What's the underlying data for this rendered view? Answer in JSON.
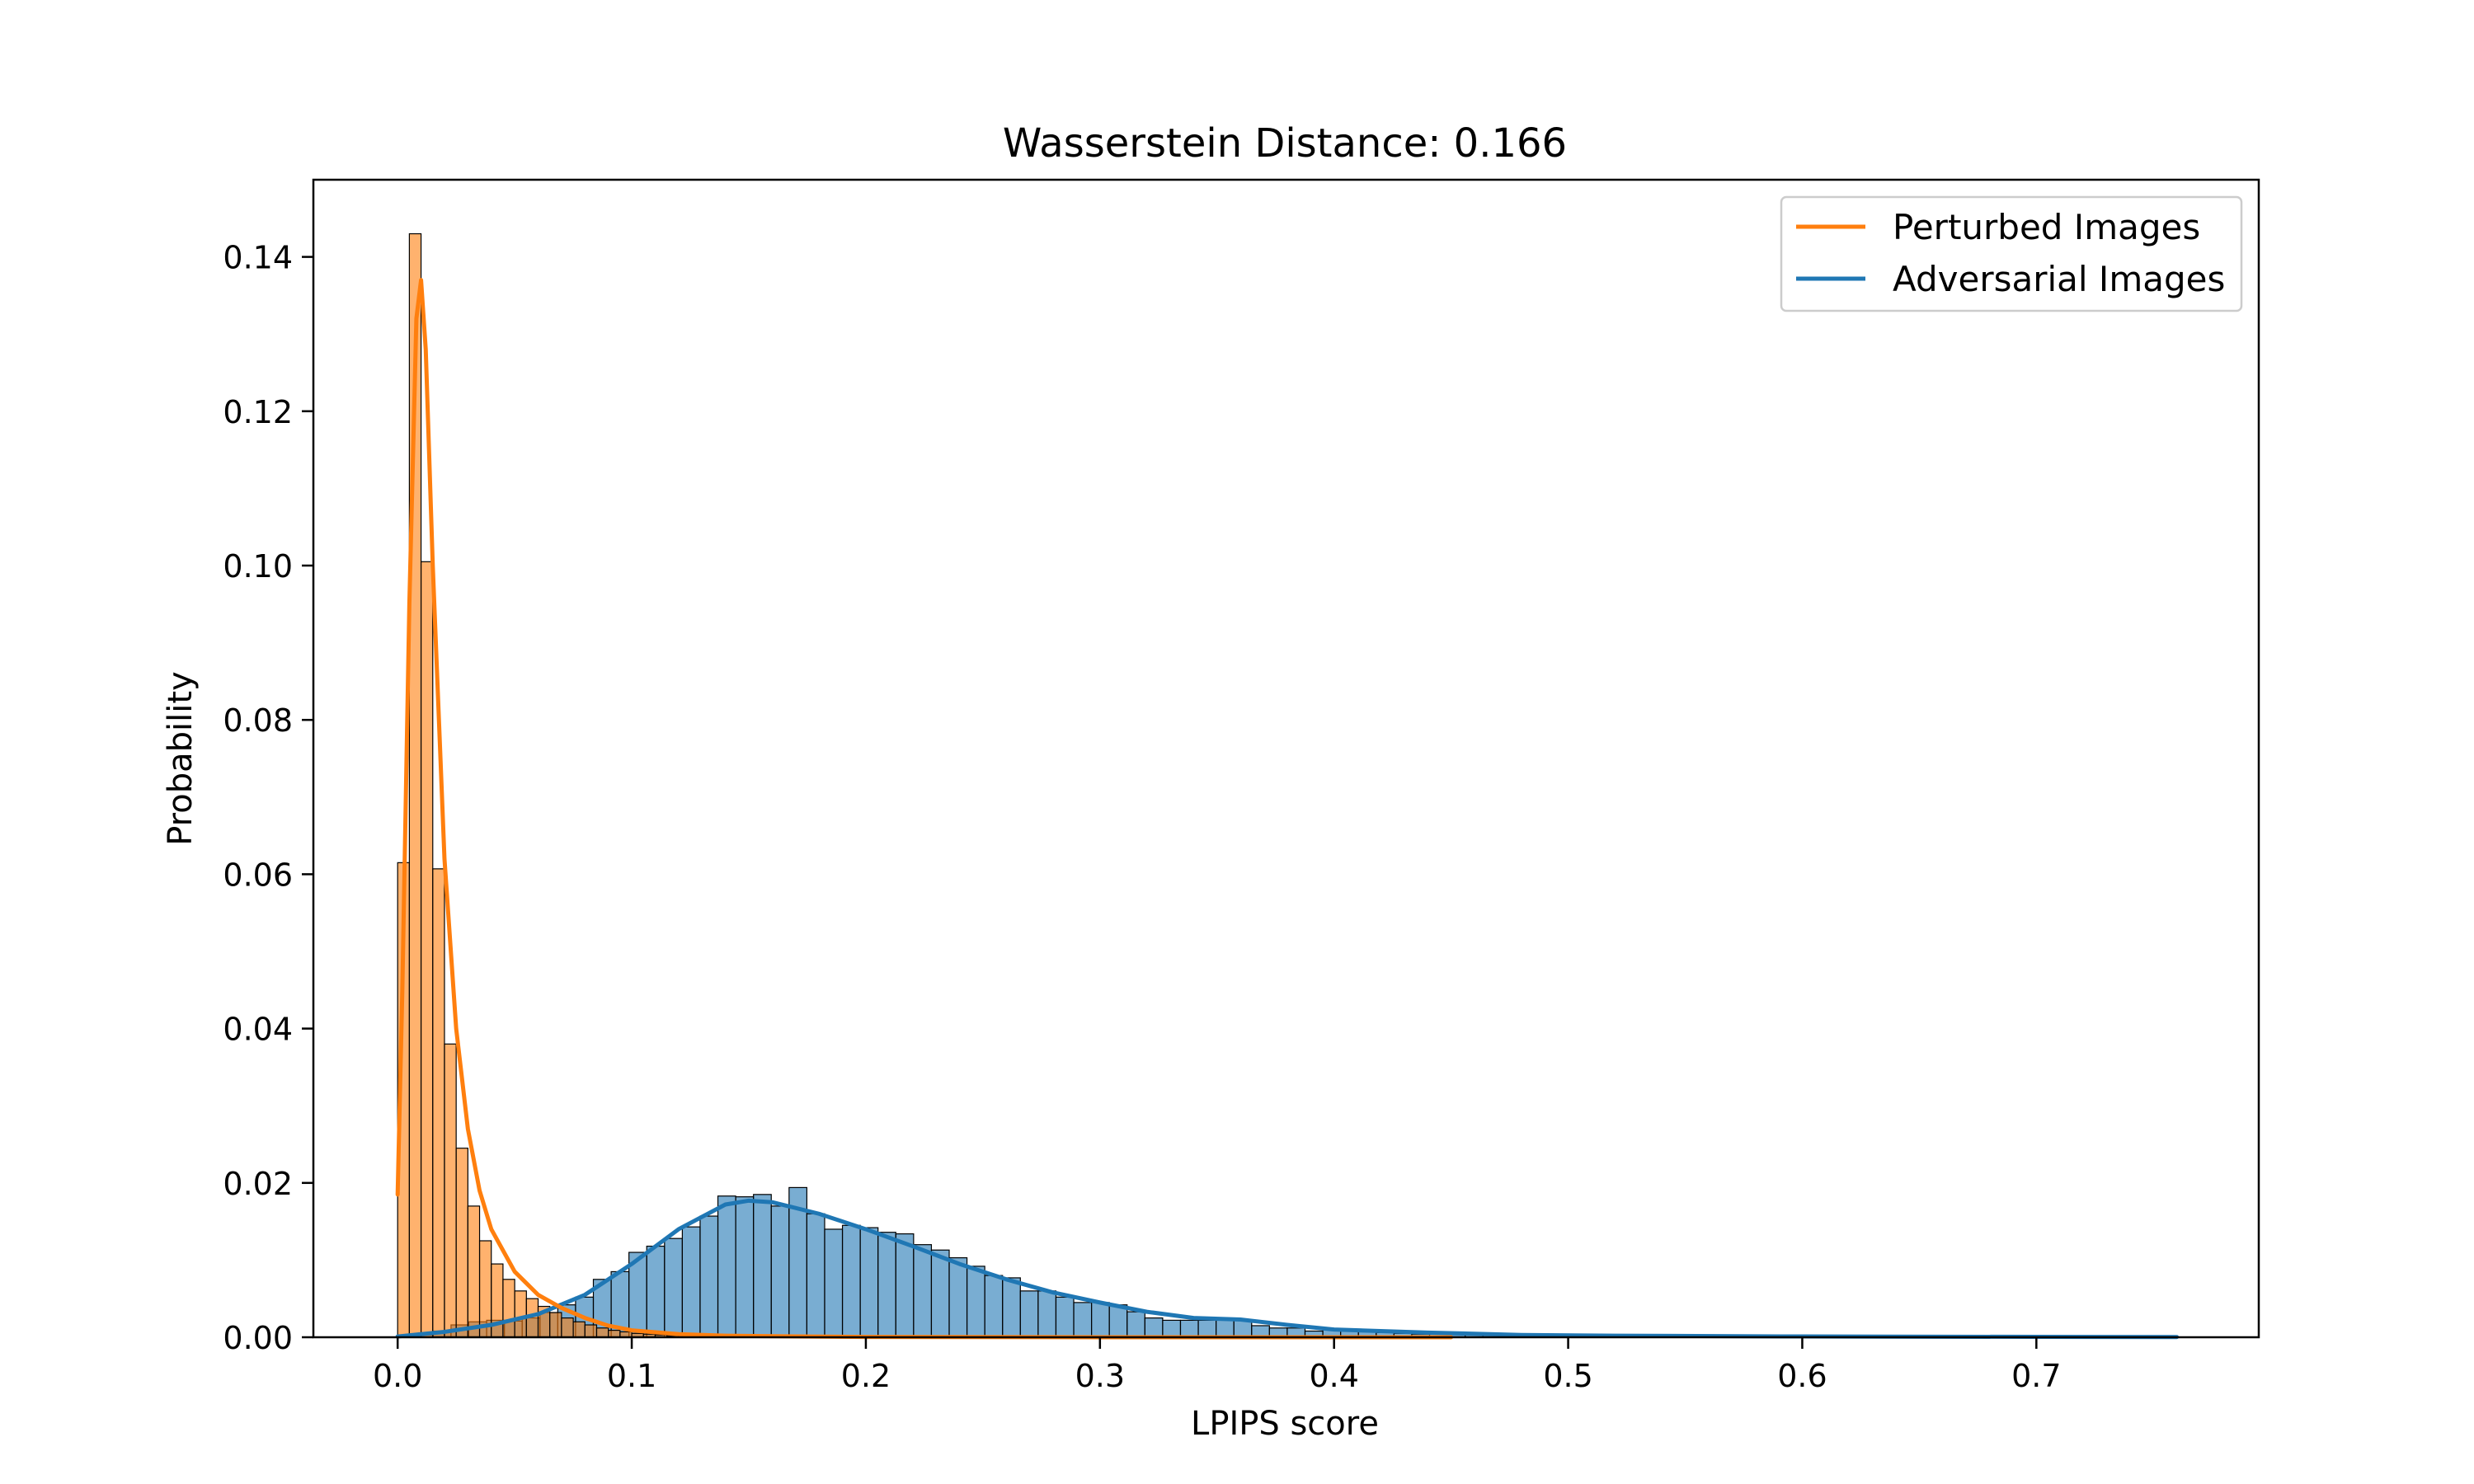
{
  "chart_data": {
    "type": "histogram",
    "title": "Wasserstein Distance: 0.166",
    "xlabel": "LPIPS score",
    "ylabel": "Probability",
    "xlim": [
      -0.036,
      0.795
    ],
    "ylim": [
      0.0,
      0.15
    ],
    "xticks": [
      0.0,
      0.1,
      0.2,
      0.3,
      0.4,
      0.5,
      0.6,
      0.7
    ],
    "xtick_labels": [
      "0.0",
      "0.1",
      "0.2",
      "0.3",
      "0.4",
      "0.5",
      "0.6",
      "0.7"
    ],
    "yticks": [
      0.0,
      0.02,
      0.04,
      0.06,
      0.08,
      0.1,
      0.12,
      0.14
    ],
    "ytick_labels": [
      "0.00",
      "0.02",
      "0.04",
      "0.06",
      "0.08",
      "0.10",
      "0.12",
      "0.14"
    ],
    "grid": false,
    "legend_position": "top-right",
    "series": [
      {
        "name": "Perturbed Images",
        "color": "#ff7f0e",
        "bin_width": 0.005,
        "bins": [
          [
            0.0,
            0.0615
          ],
          [
            0.005,
            0.143
          ],
          [
            0.01,
            0.1005
          ],
          [
            0.015,
            0.0607
          ],
          [
            0.02,
            0.038
          ],
          [
            0.025,
            0.0245
          ],
          [
            0.03,
            0.017
          ],
          [
            0.035,
            0.0125
          ],
          [
            0.04,
            0.0095
          ],
          [
            0.045,
            0.0075
          ],
          [
            0.05,
            0.006
          ],
          [
            0.055,
            0.005
          ],
          [
            0.06,
            0.004
          ],
          [
            0.065,
            0.0032
          ],
          [
            0.07,
            0.0025
          ],
          [
            0.075,
            0.002
          ],
          [
            0.08,
            0.0016
          ],
          [
            0.085,
            0.0012
          ],
          [
            0.09,
            0.0009
          ],
          [
            0.095,
            0.0007
          ],
          [
            0.1,
            0.0005
          ],
          [
            0.105,
            0.0004
          ],
          [
            0.11,
            0.0003
          ],
          [
            0.115,
            0.0002
          ],
          [
            0.12,
            0.0002
          ],
          [
            0.125,
            0.0001
          ]
        ],
        "kde": [
          [
            0.0,
            0.0185
          ],
          [
            0.002,
            0.045
          ],
          [
            0.005,
            0.095
          ],
          [
            0.008,
            0.132
          ],
          [
            0.01,
            0.137
          ],
          [
            0.012,
            0.128
          ],
          [
            0.015,
            0.1
          ],
          [
            0.02,
            0.062
          ],
          [
            0.025,
            0.04
          ],
          [
            0.03,
            0.027
          ],
          [
            0.035,
            0.019
          ],
          [
            0.04,
            0.014
          ],
          [
            0.05,
            0.0085
          ],
          [
            0.06,
            0.0055
          ],
          [
            0.07,
            0.0038
          ],
          [
            0.08,
            0.0025
          ],
          [
            0.09,
            0.0015
          ],
          [
            0.1,
            0.0009
          ],
          [
            0.12,
            0.0004
          ],
          [
            0.14,
            0.0002
          ],
          [
            0.17,
            0.0001
          ],
          [
            0.2,
            4e-05
          ],
          [
            0.3,
            0.0
          ],
          [
            0.45,
            0.0
          ]
        ]
      },
      {
        "name": "Adversarial Images",
        "color": "#1f77b4",
        "bin_width": 0.0076,
        "bins": [
          [
            0.0,
            0.0
          ],
          [
            0.0076,
            0.0003
          ],
          [
            0.0152,
            0.0008
          ],
          [
            0.0228,
            0.0016
          ],
          [
            0.0304,
            0.002
          ],
          [
            0.038,
            0.0022
          ],
          [
            0.0456,
            0.0021
          ],
          [
            0.0532,
            0.0025
          ],
          [
            0.0608,
            0.0032
          ],
          [
            0.0684,
            0.0042
          ],
          [
            0.076,
            0.0052
          ],
          [
            0.0836,
            0.0075
          ],
          [
            0.0912,
            0.0085
          ],
          [
            0.0988,
            0.011
          ],
          [
            0.1064,
            0.0118
          ],
          [
            0.114,
            0.0128
          ],
          [
            0.1216,
            0.0143
          ],
          [
            0.1292,
            0.0157
          ],
          [
            0.1368,
            0.0183
          ],
          [
            0.1444,
            0.0182
          ],
          [
            0.152,
            0.0185
          ],
          [
            0.1596,
            0.017
          ],
          [
            0.1672,
            0.0194
          ],
          [
            0.1748,
            0.016
          ],
          [
            0.1824,
            0.014
          ],
          [
            0.19,
            0.0145
          ],
          [
            0.1976,
            0.0142
          ],
          [
            0.2052,
            0.0136
          ],
          [
            0.2128,
            0.0134
          ],
          [
            0.2204,
            0.012
          ],
          [
            0.228,
            0.0113
          ],
          [
            0.2356,
            0.0103
          ],
          [
            0.2432,
            0.0092
          ],
          [
            0.2508,
            0.008
          ],
          [
            0.2584,
            0.0077
          ],
          [
            0.266,
            0.006
          ],
          [
            0.2736,
            0.006
          ],
          [
            0.2812,
            0.0052
          ],
          [
            0.2888,
            0.0045
          ],
          [
            0.2964,
            0.0045
          ],
          [
            0.304,
            0.0042
          ],
          [
            0.3116,
            0.0033
          ],
          [
            0.3192,
            0.0025
          ],
          [
            0.3268,
            0.0022
          ],
          [
            0.3344,
            0.0022
          ],
          [
            0.342,
            0.0022
          ],
          [
            0.3496,
            0.0022
          ],
          [
            0.3572,
            0.0022
          ],
          [
            0.3648,
            0.0015
          ],
          [
            0.3724,
            0.0012
          ],
          [
            0.38,
            0.0012
          ],
          [
            0.3876,
            0.0008
          ],
          [
            0.3952,
            0.001
          ],
          [
            0.4028,
            0.0008
          ],
          [
            0.4104,
            0.0007
          ],
          [
            0.418,
            0.0006
          ],
          [
            0.4256,
            0.0005
          ],
          [
            0.4332,
            0.0004
          ],
          [
            0.4408,
            0.0004
          ],
          [
            0.4484,
            0.0004
          ],
          [
            0.456,
            0.0004
          ],
          [
            0.4636,
            0.0003
          ],
          [
            0.4712,
            0.0003
          ],
          [
            0.4788,
            0.0002
          ],
          [
            0.4864,
            0.0002
          ],
          [
            0.494,
            0.0002
          ],
          [
            0.5016,
            0.0002
          ],
          [
            0.5092,
            0.0001
          ],
          [
            0.5168,
            0.0001
          ],
          [
            0.5244,
            0.0001
          ],
          [
            0.532,
            0.0001
          ],
          [
            0.5396,
            0.0001
          ],
          [
            0.5472,
            0.0001
          ],
          [
            0.5548,
            0.0001
          ],
          [
            0.5624,
            0.0001
          ],
          [
            0.57,
            5e-05
          ],
          [
            0.5776,
            5e-05
          ],
          [
            0.5852,
            5e-05
          ],
          [
            0.5928,
            5e-05
          ],
          [
            0.6004,
            5e-05
          ],
          [
            0.608,
            5e-05
          ],
          [
            0.6156,
            5e-05
          ],
          [
            0.6232,
            5e-05
          ],
          [
            0.6308,
            5e-05
          ],
          [
            0.6384,
            5e-05
          ],
          [
            0.646,
            5e-05
          ],
          [
            0.6536,
            5e-05
          ],
          [
            0.6612,
            5e-05
          ],
          [
            0.6688,
            5e-05
          ],
          [
            0.6764,
            5e-05
          ],
          [
            0.684,
            5e-05
          ],
          [
            0.6916,
            5e-05
          ],
          [
            0.6992,
            5e-05
          ],
          [
            0.7068,
            5e-05
          ],
          [
            0.7144,
            5e-05
          ],
          [
            0.722,
            5e-05
          ],
          [
            0.7296,
            5e-05
          ],
          [
            0.7372,
            5e-05
          ],
          [
            0.7448,
            5e-05
          ],
          [
            0.7524,
            5e-05
          ]
        ],
        "kde": [
          [
            0.0,
            0.0001
          ],
          [
            0.02,
            0.0007
          ],
          [
            0.04,
            0.0016
          ],
          [
            0.06,
            0.003
          ],
          [
            0.08,
            0.0055
          ],
          [
            0.1,
            0.0095
          ],
          [
            0.12,
            0.014
          ],
          [
            0.14,
            0.0172
          ],
          [
            0.15,
            0.0177
          ],
          [
            0.16,
            0.0175
          ],
          [
            0.18,
            0.016
          ],
          [
            0.2,
            0.014
          ],
          [
            0.22,
            0.0118
          ],
          [
            0.24,
            0.0095
          ],
          [
            0.26,
            0.0075
          ],
          [
            0.28,
            0.0058
          ],
          [
            0.3,
            0.0045
          ],
          [
            0.32,
            0.0033
          ],
          [
            0.34,
            0.0025
          ],
          [
            0.36,
            0.0023
          ],
          [
            0.38,
            0.0016
          ],
          [
            0.4,
            0.001
          ],
          [
            0.44,
            0.0006
          ],
          [
            0.48,
            0.0003
          ],
          [
            0.52,
            0.0002
          ],
          [
            0.6,
            0.0001
          ],
          [
            0.7,
            5e-05
          ],
          [
            0.76,
            3e-05
          ]
        ]
      }
    ]
  }
}
